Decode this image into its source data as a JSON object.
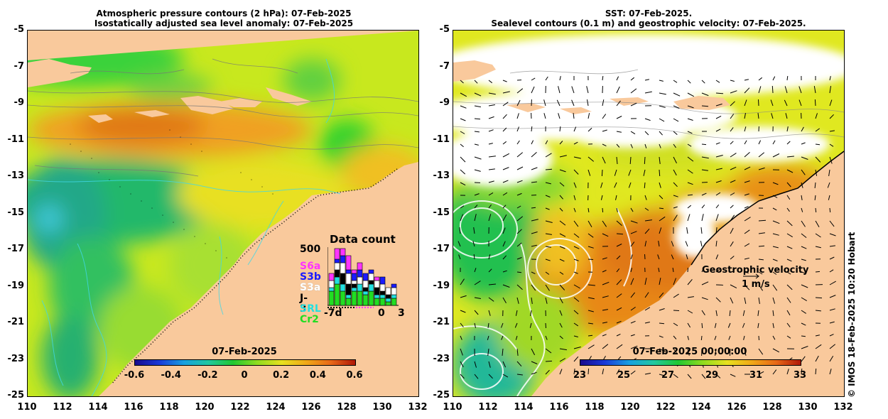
{
  "left_panel": {
    "title_line1": "Atmospheric pressure contours (2 hPa): 07-Feb-2025",
    "title_line2": "Isostatically adjusted sea level anomaly: 07-Feb-2025",
    "colorbar_label": "07-Feb-2025",
    "colorbar_ticks": [
      "-0.6",
      "-0.4",
      "-0.2",
      "0",
      "0.2",
      "0.4",
      "0.6"
    ],
    "data_count": {
      "title": "Data count",
      "max_label": "500",
      "satellites": [
        {
          "name": "S6a",
          "color": "#ff33ff"
        },
        {
          "name": "S3b",
          "color": "#1a1aff"
        },
        {
          "name": "S3a",
          "color": "#ffffff"
        },
        {
          "name": "J-3",
          "color": "#000000"
        },
        {
          "name": "SRL",
          "color": "#22e0e0"
        },
        {
          "name": "Cr2",
          "color": "#22dd22"
        }
      ],
      "x_labels": [
        "-7d",
        "0",
        "3"
      ]
    }
  },
  "right_panel": {
    "title_line1": "SST: 07-Feb-2025.",
    "title_line2": "Sealevel contours (0.1 m) and geostrophic velocity: 07-Feb-2025.",
    "colorbar_label": "07-Feb-2025 00:00:00",
    "colorbar_ticks": [
      "23",
      "25",
      "27",
      "29",
      "31",
      "33"
    ],
    "velocity_legend_title": "Geostrophic velocity",
    "velocity_legend_scale": "1 m/s"
  },
  "axes": {
    "y_ticks": [
      "-5",
      "-7",
      "-9",
      "-11",
      "-13",
      "-15",
      "-17",
      "-19",
      "-21",
      "-23",
      "-25"
    ],
    "x_ticks": [
      "110",
      "112",
      "114",
      "116",
      "118",
      "120",
      "122",
      "124",
      "126",
      "128",
      "130",
      "132"
    ]
  },
  "copyright": "© IMOS 18-Feb-2025 10:20 Hobart",
  "colors": {
    "land": "#f9c99c",
    "cloud": "#ffffff"
  }
}
